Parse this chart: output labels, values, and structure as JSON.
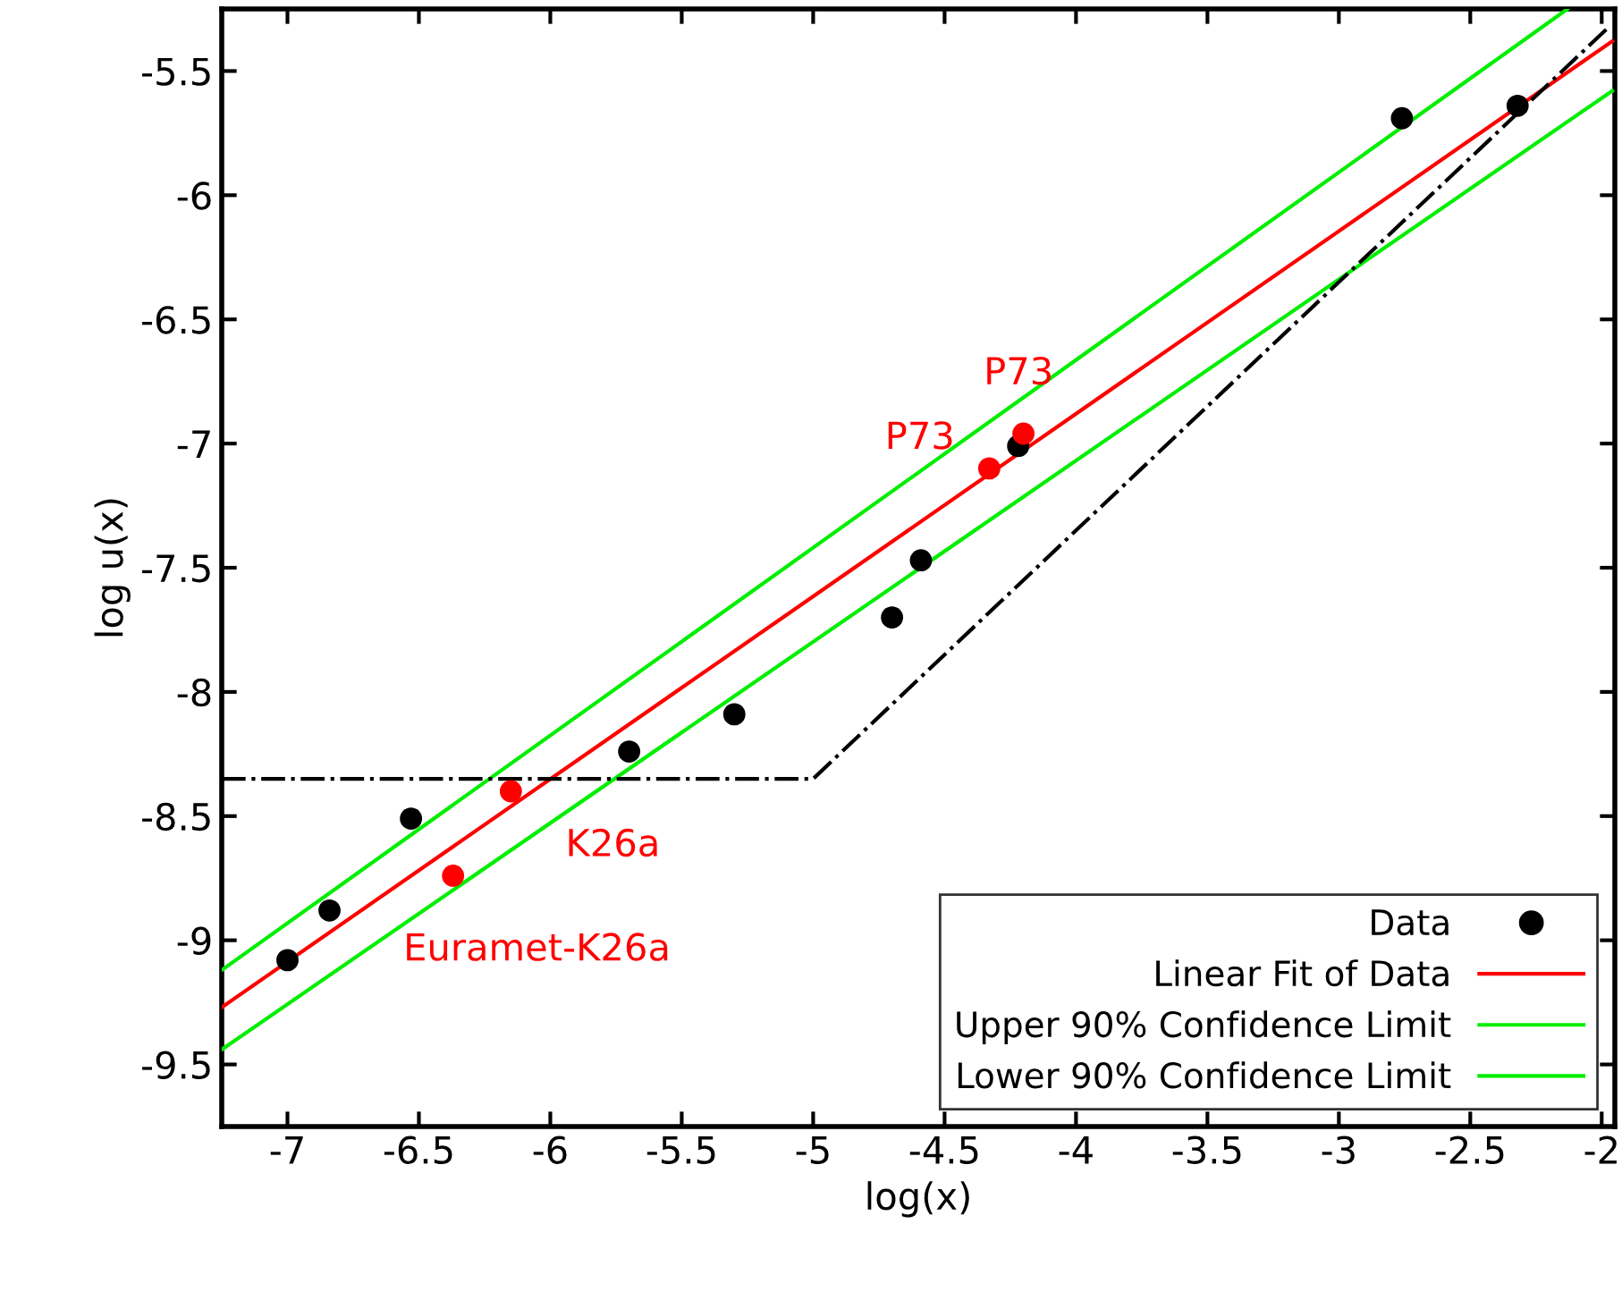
{
  "chart_data": {
    "type": "scatter",
    "xlabel": "log(x)",
    "ylabel": "log u(x)",
    "xlim": [
      -7.25,
      -1.95
    ],
    "ylim": [
      -9.75,
      -5.25
    ],
    "xticks": [
      -7,
      -6.5,
      -6,
      -5.5,
      -5,
      -4.5,
      -4,
      -3.5,
      -3,
      -2.5,
      -2
    ],
    "yticks": [
      -9.5,
      -9,
      -8.5,
      -8,
      -7.5,
      -7,
      -6.5,
      -6,
      -5.5
    ],
    "grid": false,
    "legend": "bottom right",
    "marker": "circle",
    "series": [
      {
        "name": "Data",
        "color": "#000000",
        "x": [
          -7.0,
          -6.84,
          -6.53,
          -5.7,
          -5.3,
          -4.7,
          -4.59,
          -4.22,
          -2.76,
          -2.32
        ],
        "values": [
          -9.08,
          -8.88,
          -8.51,
          -8.24,
          -8.09,
          -7.7,
          -7.47,
          -7.01,
          -5.69,
          -5.64
        ]
      },
      {
        "color": "#ff0000",
        "x": [
          -6.15,
          -6.37,
          -4.33,
          -4.2
        ],
        "values": [
          -8.4,
          -8.74,
          -7.1,
          -6.96
        ]
      },
      {
        "name": "Linear Fit of Data",
        "type": "line",
        "color": "#ff0000",
        "marker": "none",
        "x": [
          -7.25,
          -1.96
        ],
        "values": [
          -9.27,
          -5.38
        ]
      },
      {
        "name": "Upper 90% Confidence Limit",
        "type": "line",
        "color": "#00ee00",
        "marker": "none",
        "x": [
          -7.25,
          -2.13
        ],
        "values": [
          -9.12,
          -5.25
        ]
      },
      {
        "name": "Lower 90% Confidence Limit",
        "type": "line",
        "color": "#00ee00",
        "marker": "none",
        "x": [
          -7.25,
          -1.96
        ],
        "values": [
          -9.44,
          -5.58
        ]
      },
      {
        "type": "line",
        "color": "#000000",
        "marker": "none",
        "line_style": "dashdot",
        "x": [
          -7.25,
          -5.0,
          -1.98
        ],
        "values": [
          -8.35,
          -8.35,
          -5.33
        ]
      }
    ],
    "annotations": [
      {
        "text": "K26a",
        "x": -6.15,
        "y": -8.4
      },
      {
        "text": "Euramet-K26a",
        "x": -6.37,
        "y": -8.74
      },
      {
        "text": "P73",
        "x": -4.33,
        "y": -7.1
      },
      {
        "text": "P73",
        "x": -4.2,
        "y": -6.96
      }
    ]
  }
}
